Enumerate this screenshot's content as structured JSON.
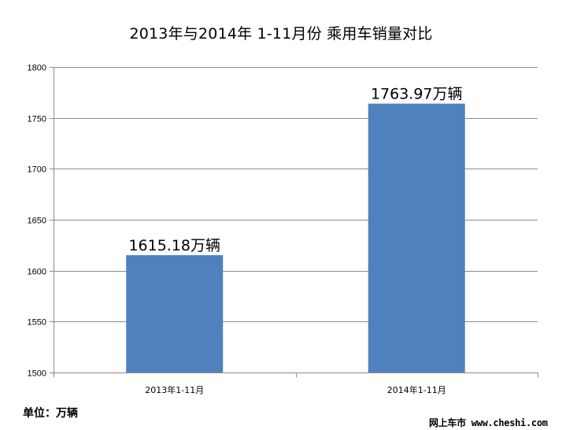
{
  "chart_data": {
    "type": "bar",
    "title": "2013年与2014年 1-11月份 乘用车销量对比",
    "categories": [
      "2013年1-11月",
      "2014年1-11月"
    ],
    "values": [
      1615.18,
      1763.97
    ],
    "data_labels": [
      "1615.18万辆",
      "1763.97万辆"
    ],
    "ylim": [
      1500,
      1800
    ],
    "yticks": [
      1500,
      1550,
      1600,
      1650,
      1700,
      1750,
      1800
    ],
    "xlabel": "",
    "ylabel": "",
    "grid": true,
    "legend": "none",
    "bar_color": "#4F81BD"
  },
  "unit_note": "单位：万辆",
  "watermark": "网上车市 www.cheshi.com"
}
